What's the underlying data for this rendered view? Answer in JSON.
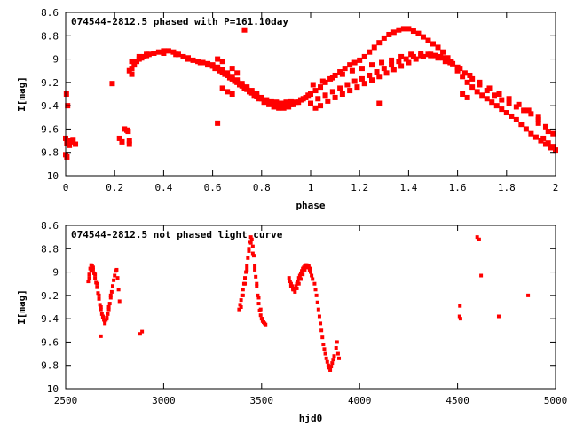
{
  "chart_data": [
    {
      "type": "scatter",
      "title": "074544-2812.5 phased with P=161.10day",
      "xlabel": "phase",
      "ylabel": "I[mag]",
      "xlim": [
        0,
        2
      ],
      "ylim": [
        8.6,
        10
      ],
      "y_inverted": true,
      "grid": false,
      "marker_color": "#ff0000",
      "xticks": [
        0,
        0.2,
        0.4,
        0.6,
        0.8,
        1,
        1.2,
        1.4,
        1.6,
        1.8,
        2
      ],
      "xtick_labels": [
        "0",
        "0.2",
        "0.4",
        "0.6",
        "0.8",
        "1",
        "1.2",
        "1.4",
        "1.6",
        "1.8",
        "2"
      ],
      "yticks": [
        8.6,
        8.8,
        9,
        9.2,
        9.4,
        9.6,
        9.8,
        10
      ],
      "ytick_labels": [
        "8.6",
        "8.8",
        "9",
        "9.2",
        "9.4",
        "9.6",
        "9.8",
        "10"
      ],
      "series": [
        {
          "x": [
            0.0,
            0.005,
            0.01,
            0.015,
            0.02,
            0.03,
            0.04,
            0.0,
            0.005,
            0.003,
            0.008,
            0.19,
            0.22,
            0.23,
            0.24,
            0.25,
            0.255,
            0.26,
            0.26,
            0.27,
            0.28,
            0.29,
            0.3,
            0.31,
            0.32,
            0.33,
            0.34,
            0.36,
            0.38,
            0.4,
            0.42,
            0.44,
            0.46,
            0.48,
            0.5,
            0.52,
            0.54,
            0.56,
            0.58,
            0.6,
            0.62,
            0.64,
            0.66,
            0.68,
            0.7,
            0.72,
            0.74,
            0.76,
            0.78,
            0.8,
            0.82,
            0.84,
            0.86,
            0.88,
            0.9,
            0.92,
            0.94,
            0.96,
            0.98,
            0.27,
            0.3,
            0.33,
            0.36,
            0.4,
            0.45,
            0.5,
            0.55,
            0.58,
            0.61,
            0.63,
            0.65,
            0.67,
            0.69,
            0.71,
            0.73,
            0.75,
            0.77,
            0.79,
            0.81,
            0.83,
            0.85,
            0.87,
            0.89,
            0.91,
            0.93,
            0.95,
            0.97,
            0.99,
            0.6,
            0.62,
            0.64,
            0.66,
            0.68,
            0.7,
            0.72,
            0.74,
            0.76,
            0.78,
            0.8,
            0.82,
            0.84,
            0.86,
            0.88,
            0.9,
            0.92,
            0.62,
            0.64,
            0.68,
            0.7,
            0.73,
            0.26,
            0.27,
            0.62,
            0.64,
            0.66,
            0.68,
            1.0,
            1.02,
            1.04,
            1.06,
            1.08,
            1.1,
            1.12,
            1.14,
            1.16,
            1.18,
            1.2,
            1.22,
            1.24,
            1.26,
            1.28,
            1.3,
            1.32,
            1.34,
            1.36,
            1.38,
            1.4,
            1.42,
            1.44,
            1.46,
            1.48,
            1.5,
            1.52,
            1.54,
            1.56,
            1.58,
            1.6,
            1.62,
            1.64,
            1.66,
            1.68,
            1.7,
            1.72,
            1.74,
            1.76,
            1.78,
            1.8,
            1.82,
            1.84,
            1.86,
            1.88,
            1.9,
            1.92,
            1.94,
            1.96,
            1.98,
            2.0,
            1.0,
            1.03,
            1.06,
            1.09,
            1.12,
            1.15,
            1.18,
            1.21,
            1.24,
            1.27,
            1.3,
            1.33,
            1.36,
            1.39,
            1.42,
            1.45,
            1.48,
            1.51,
            1.54,
            1.57,
            1.6,
            1.63,
            1.66,
            1.69,
            1.72,
            1.75,
            1.78,
            1.81,
            1.84,
            1.87,
            1.9,
            1.93,
            1.96,
            1.99,
            1.01,
            1.05,
            1.09,
            1.13,
            1.17,
            1.21,
            1.25,
            1.29,
            1.33,
            1.37,
            1.41,
            1.45,
            1.49,
            1.53,
            1.57,
            1.61,
            1.65,
            1.69,
            1.73,
            1.77,
            1.81,
            1.85,
            1.89,
            1.93,
            1.97,
            1.02,
            1.04,
            1.07,
            1.1,
            1.13,
            1.16,
            1.19,
            1.22,
            1.25,
            1.28,
            1.31,
            1.34,
            1.37,
            1.4,
            1.43,
            1.46,
            1.49,
            1.52,
            1.55,
            1.28,
            1.62,
            1.64,
            1.93,
            1.95,
            1.97,
            1.99
          ],
          "y": [
            9.68,
            9.72,
            9.7,
            9.74,
            9.71,
            9.69,
            9.73,
            9.82,
            9.84,
            9.3,
            9.4,
            9.21,
            9.68,
            9.71,
            9.6,
            9.61,
            9.62,
            9.7,
            9.73,
            9.08,
            9.05,
            9.02,
            9.0,
            8.99,
            8.98,
            8.97,
            8.96,
            8.95,
            8.94,
            8.93,
            8.93,
            8.94,
            8.96,
            8.98,
            9.0,
            9.01,
            9.02,
            9.03,
            9.04,
            9.06,
            9.08,
            9.11,
            9.14,
            9.17,
            9.2,
            9.23,
            9.26,
            9.29,
            9.32,
            9.34,
            9.36,
            9.38,
            9.39,
            9.4,
            9.4,
            9.39,
            9.37,
            9.35,
            9.33,
            9.02,
            8.98,
            8.96,
            8.95,
            8.95,
            8.96,
            8.99,
            9.03,
            9.05,
            9.08,
            9.1,
            9.13,
            9.16,
            9.19,
            9.22,
            9.25,
            9.28,
            9.31,
            9.34,
            9.37,
            9.39,
            9.41,
            9.42,
            9.42,
            9.41,
            9.39,
            9.37,
            9.34,
            9.31,
            9.05,
            9.07,
            9.09,
            9.12,
            9.15,
            9.18,
            9.21,
            9.24,
            9.27,
            9.3,
            9.33,
            9.35,
            9.36,
            9.37,
            9.38,
            9.37,
            9.36,
            9.0,
            9.02,
            9.08,
            9.12,
            8.75,
            9.1,
            9.13,
            9.55,
            9.25,
            9.28,
            9.3,
            9.3,
            9.27,
            9.24,
            9.2,
            9.17,
            9.14,
            9.11,
            9.08,
            9.05,
            9.03,
            9.01,
            8.98,
            8.94,
            8.9,
            8.86,
            8.82,
            8.79,
            8.77,
            8.75,
            8.74,
            8.74,
            8.76,
            8.78,
            8.81,
            8.84,
            8.87,
            8.9,
            8.94,
            8.99,
            9.04,
            9.1,
            9.15,
            9.2,
            9.24,
            9.28,
            9.31,
            9.34,
            9.37,
            9.4,
            9.43,
            9.46,
            9.49,
            9.52,
            9.56,
            9.6,
            9.64,
            9.67,
            9.7,
            9.73,
            9.76,
            9.78,
            9.38,
            9.34,
            9.31,
            9.28,
            9.25,
            9.22,
            9.19,
            9.17,
            9.14,
            9.11,
            9.08,
            9.05,
            9.02,
            9.0,
            8.98,
            8.97,
            8.96,
            8.97,
            8.99,
            9.02,
            9.07,
            9.12,
            9.17,
            9.22,
            9.27,
            9.31,
            9.35,
            9.38,
            9.41,
            9.44,
            9.47,
            9.52,
            9.58,
            9.64,
            9.22,
            9.19,
            9.16,
            9.13,
            9.1,
            9.08,
            9.05,
            9.03,
            9.01,
            8.98,
            8.96,
            8.95,
            8.96,
            8.98,
            9.03,
            9.08,
            9.14,
            9.2,
            9.25,
            9.3,
            9.34,
            9.39,
            9.44,
            9.55,
            9.62,
            9.42,
            9.4,
            9.36,
            9.33,
            9.3,
            9.27,
            9.24,
            9.21,
            9.18,
            9.15,
            9.12,
            9.09,
            9.06,
            9.03,
            9.0,
            8.98,
            8.97,
            8.99,
            9.02,
            9.38,
            9.3,
            9.33,
            9.5,
            9.68,
            9.72,
            9.75
          ]
        }
      ]
    },
    {
      "type": "scatter",
      "title": "074544-2812.5 not phased light curve",
      "xlabel": "hjd0",
      "ylabel": "I[mag]",
      "xlim": [
        2500,
        5000
      ],
      "ylim": [
        8.6,
        10
      ],
      "y_inverted": true,
      "grid": false,
      "marker_color": "#ff0000",
      "xticks": [
        2500,
        3000,
        3500,
        4000,
        4500,
        5000
      ],
      "xtick_labels": [
        "2500",
        "3000",
        "3500",
        "4000",
        "4500",
        "5000"
      ],
      "yticks": [
        8.6,
        8.8,
        9,
        9.2,
        9.4,
        9.6,
        9.8,
        10
      ],
      "ytick_labels": [
        "8.6",
        "8.8",
        "9",
        "9.2",
        "9.4",
        "9.6",
        "9.8",
        "10"
      ],
      "series": [
        {
          "x": [
            2615,
            2620,
            2625,
            2630,
            2635,
            2640,
            2645,
            2650,
            2655,
            2660,
            2665,
            2670,
            2675,
            2680,
            2685,
            2690,
            2695,
            2700,
            2705,
            2710,
            2715,
            2720,
            2725,
            2730,
            2735,
            2740,
            2745,
            2750,
            2755,
            2760,
            2765,
            2770,
            2775,
            2620,
            2630,
            2640,
            2650,
            2660,
            2670,
            2680,
            2690,
            2700,
            2710,
            2720,
            2730,
            2740,
            2680,
            2880,
            2890,
            3385,
            3390,
            3395,
            3400,
            3405,
            3410,
            3415,
            3420,
            3425,
            3430,
            3435,
            3440,
            3445,
            3450,
            3455,
            3460,
            3465,
            3470,
            3475,
            3480,
            3485,
            3490,
            3495,
            3500,
            3505,
            3510,
            3515,
            3520,
            3395,
            3405,
            3415,
            3425,
            3435,
            3445,
            3455,
            3465,
            3475,
            3485,
            3495,
            3505,
            3640,
            3645,
            3650,
            3655,
            3660,
            3665,
            3670,
            3675,
            3680,
            3685,
            3690,
            3695,
            3700,
            3705,
            3710,
            3715,
            3720,
            3725,
            3730,
            3735,
            3740,
            3745,
            3750,
            3755,
            3760,
            3650,
            3660,
            3670,
            3680,
            3690,
            3700,
            3710,
            3720,
            3730,
            3740,
            3750,
            3770,
            3775,
            3780,
            3785,
            3790,
            3795,
            3800,
            3805,
            3810,
            3815,
            3820,
            3825,
            3830,
            3835,
            3840,
            3845,
            3850,
            3855,
            3860,
            3865,
            3870,
            3880,
            3885,
            3890,
            3895,
            4510,
            4512,
            4515,
            4600,
            4610,
            4620,
            4710,
            4860
          ],
          "y": [
            9.08,
            9.02,
            8.97,
            8.94,
            8.95,
            8.98,
            9.01,
            9.05,
            9.09,
            9.13,
            9.18,
            9.23,
            9.28,
            9.32,
            9.36,
            9.39,
            9.41,
            9.42,
            9.41,
            9.39,
            9.36,
            9.32,
            9.27,
            9.22,
            9.17,
            9.12,
            9.07,
            9.03,
            8.99,
            8.98,
            9.05,
            9.15,
            9.25,
            9.05,
            8.99,
            8.96,
            9.02,
            9.1,
            9.2,
            9.3,
            9.38,
            9.44,
            9.4,
            9.3,
            9.2,
            9.12,
            9.55,
            9.53,
            9.51,
            9.32,
            9.28,
            9.24,
            9.2,
            9.15,
            9.1,
            9.05,
            9.0,
            8.95,
            8.88,
            8.8,
            8.74,
            8.7,
            8.72,
            8.78,
            8.86,
            8.95,
            9.04,
            9.12,
            9.2,
            9.27,
            9.33,
            9.37,
            9.4,
            9.42,
            9.43,
            9.44,
            9.45,
            9.3,
            9.2,
            9.1,
            8.98,
            8.82,
            8.75,
            8.84,
            8.98,
            9.1,
            9.22,
            9.32,
            9.4,
            9.05,
            9.08,
            9.1,
            9.12,
            9.14,
            9.15,
            9.14,
            9.12,
            9.1,
            9.08,
            9.05,
            9.03,
            9.01,
            8.99,
            8.97,
            8.96,
            8.95,
            8.94,
            8.94,
            8.95,
            8.96,
            8.98,
            9.0,
            9.03,
            9.06,
            9.12,
            9.15,
            9.17,
            9.14,
            9.1,
            9.06,
            9.02,
            8.98,
            8.96,
            8.95,
            8.97,
            9.1,
            9.15,
            9.2,
            9.26,
            9.32,
            9.38,
            9.44,
            9.5,
            9.56,
            9.62,
            9.66,
            9.7,
            9.74,
            9.77,
            9.8,
            9.82,
            9.84,
            9.81,
            9.78,
            9.75,
            9.72,
            9.65,
            9.6,
            9.7,
            9.74,
            9.38,
            9.29,
            9.4,
            8.7,
            8.72,
            9.03,
            9.38,
            9.2
          ]
        }
      ]
    }
  ]
}
